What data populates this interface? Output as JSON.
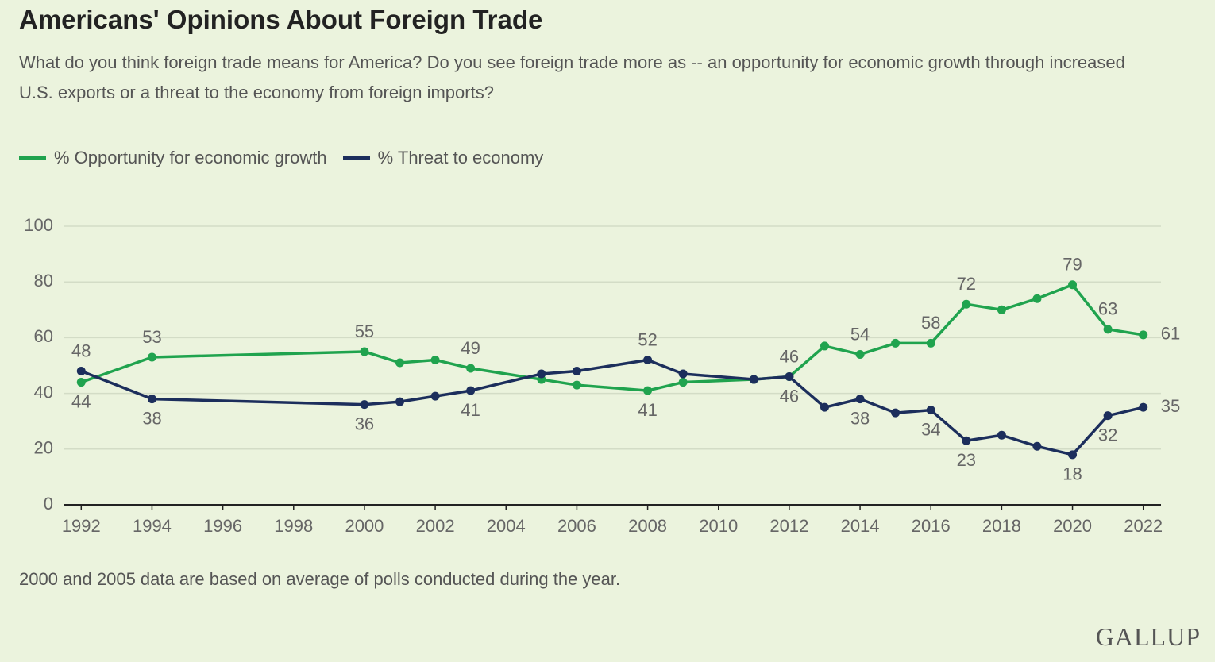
{
  "chart_data": {
    "type": "line",
    "title": "Americans' Opinions About Foreign Trade",
    "subtitle": "What do you think foreign trade means for America? Do you see foreign trade more as -- an opportunity for economic growth through increased U.S. exports or a threat to the economy from foreign imports?",
    "note": "2000 and 2005 data are based on average of polls conducted during the year.",
    "source": "GALLUP",
    "x": [
      1992,
      1994,
      2000,
      2001,
      2002,
      2003,
      2005,
      2006,
      2008,
      2009,
      2011,
      2012,
      2013,
      2014,
      2015,
      2016,
      2017,
      2018,
      2019,
      2020,
      2021,
      2022
    ],
    "series": [
      {
        "name": "% Opportunity for economic growth",
        "color": "#20a34e",
        "values": [
          44,
          53,
          55,
          51,
          52,
          49,
          45,
          43,
          41,
          44,
          45,
          46,
          57,
          54,
          58,
          58,
          72,
          70,
          74,
          79,
          63,
          61
        ],
        "value_labels": [
          "44",
          "53",
          "55",
          null,
          null,
          "49",
          null,
          null,
          "41",
          null,
          null,
          "46",
          null,
          "54",
          null,
          "58",
          "72",
          null,
          null,
          "79",
          "63",
          "61"
        ]
      },
      {
        "name": "% Threat to economy",
        "color": "#1c2e5c",
        "values": [
          48,
          38,
          36,
          37,
          39,
          41,
          47,
          48,
          52,
          47,
          45,
          46,
          35,
          38,
          33,
          34,
          23,
          25,
          21,
          18,
          32,
          35
        ],
        "value_labels": [
          "48",
          "38",
          "36",
          null,
          null,
          "41",
          null,
          null,
          "52",
          null,
          null,
          "46",
          null,
          "38",
          null,
          "34",
          "23",
          null,
          null,
          "18",
          "32",
          "35"
        ]
      }
    ],
    "xlim": [
      1991.5,
      2022.5
    ],
    "xticks": [
      1992,
      1994,
      1996,
      1998,
      2000,
      2002,
      2004,
      2006,
      2008,
      2010,
      2012,
      2014,
      2016,
      2018,
      2020,
      2022
    ],
    "ylim": [
      0,
      100
    ],
    "yticks": [
      0,
      20,
      40,
      60,
      80,
      100
    ],
    "grid": true
  }
}
